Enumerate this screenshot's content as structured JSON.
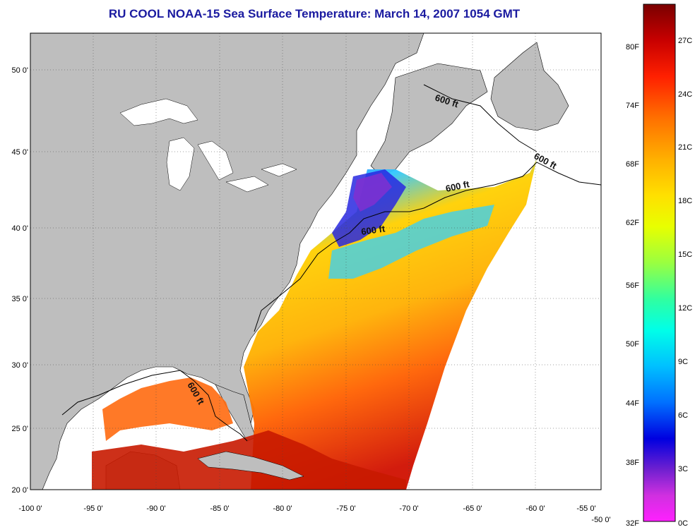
{
  "title": "RU COOL  NOAA-15  Sea Surface Temperature:  March 14, 2007 1054 GMT",
  "map": {
    "x_ticks": [
      "-100 0'",
      "-95 0'",
      "-90 0'",
      "-85 0'",
      "-80 0'",
      "-75 0'",
      "-70 0'",
      "-65 0'",
      "-60 0'",
      "-55 0'",
      "-50 0'"
    ],
    "y_ticks": [
      "50 0'",
      "45 0'",
      "40 0'",
      "35 0'",
      "30 0'",
      "25 0'",
      "20 0'"
    ],
    "contour_labels": [
      "600 ft",
      "600 ft",
      "600 ft",
      "600 ft",
      "600 ft"
    ],
    "land_color": "#bebebe",
    "nodata_color": "#ffffff"
  },
  "colorbar": {
    "fahrenheit": [
      "80F",
      "74F",
      "68F",
      "62F",
      "56F",
      "50F",
      "44F",
      "38F",
      "32F"
    ],
    "celsius": [
      "27C",
      "24C",
      "21C",
      "18C",
      "15C",
      "12C",
      "9C",
      "6C",
      "3C",
      "0C"
    ],
    "colors_top_to_bottom": [
      "#7a0000",
      "#d40000",
      "#ff2a00",
      "#ff7a00",
      "#ffb000",
      "#ffe000",
      "#e8ff00",
      "#a8ff30",
      "#40ff90",
      "#00ffe0",
      "#00c8ff",
      "#0070ff",
      "#0000e0",
      "#7a20d0",
      "#d030e0",
      "#ff20ff"
    ]
  }
}
